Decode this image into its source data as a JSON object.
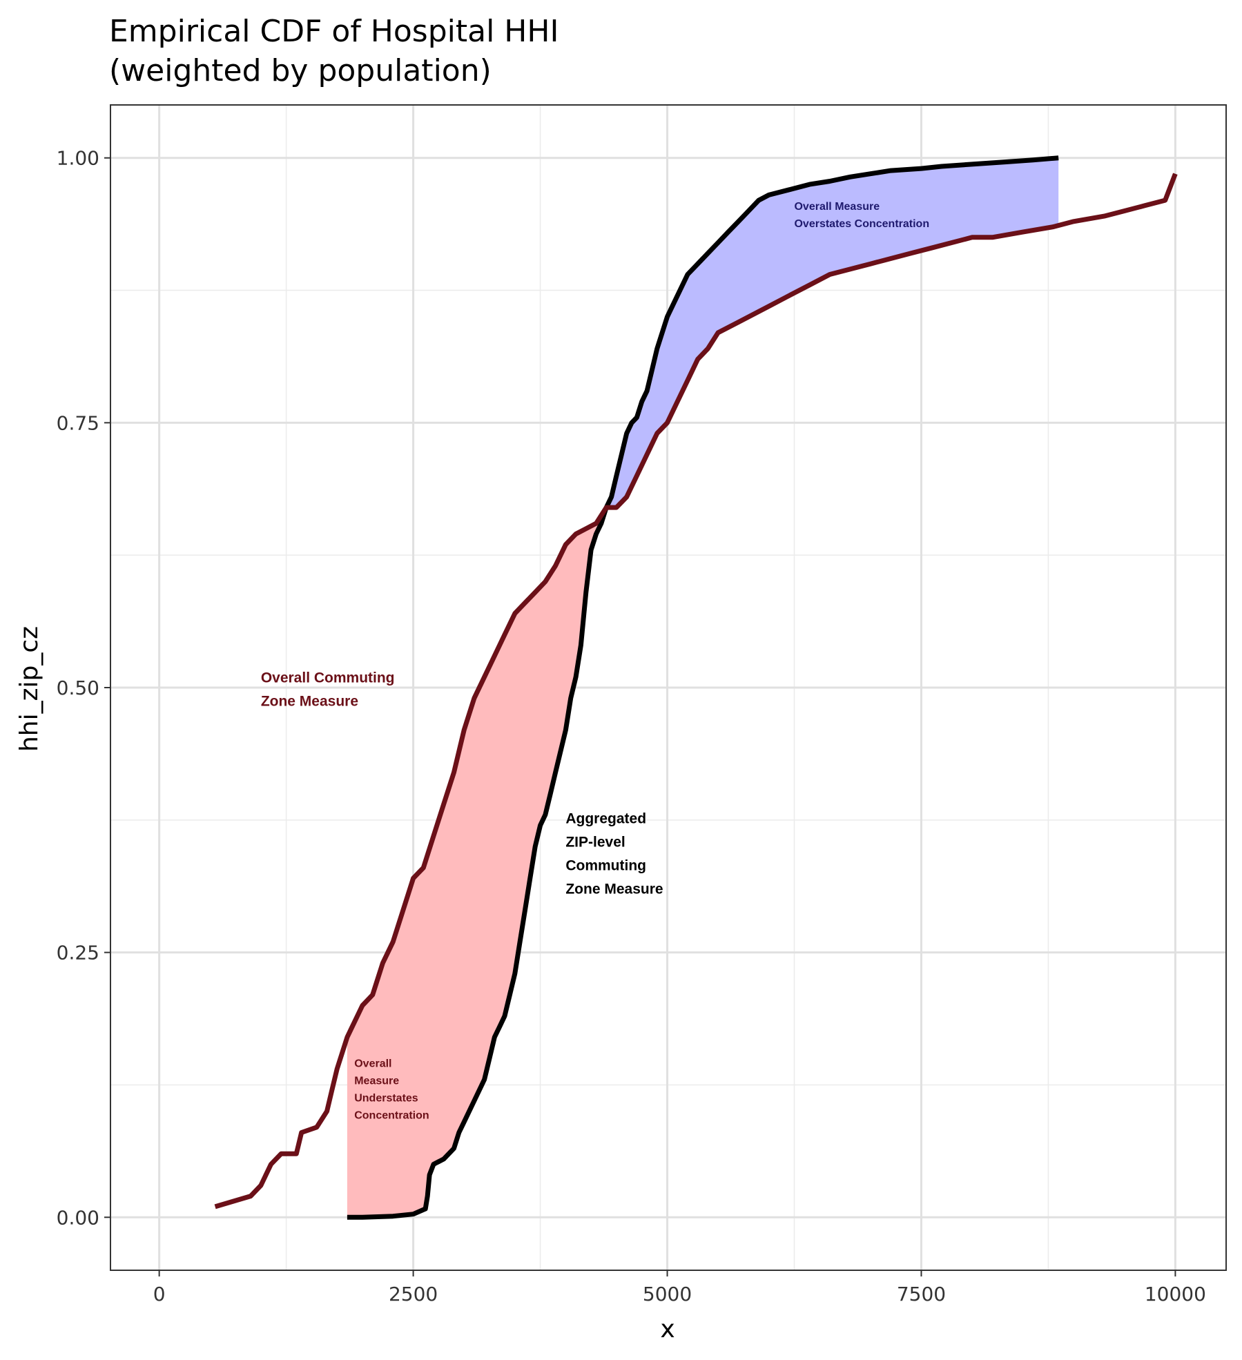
{
  "chart_data": {
    "type": "line",
    "title_line1": "Empirical CDF of Hospital HHI",
    "title_line2": "(weighted by population)",
    "xlabel": "x",
    "ylabel": "hhi_zip_cz",
    "xlim": [
      -480,
      10500
    ],
    "ylim": [
      -0.05,
      1.05
    ],
    "x_ticks": [
      0,
      2500,
      5000,
      7500,
      10000
    ],
    "x_tick_labels": [
      "0",
      "2500",
      "5000",
      "7500",
      "10000"
    ],
    "y_ticks": [
      0,
      0.25,
      0.5,
      0.75,
      1
    ],
    "y_tick_labels": [
      "0.00",
      "0.25",
      "0.50",
      "0.75",
      "1.00"
    ],
    "grid": true,
    "colors": {
      "overall": "#6b1018",
      "aggregated": "#000000",
      "understates_fill": "#ffbbbd",
      "overstates_fill": "#bbbbff",
      "annotation_blue": "#1f1a6e"
    },
    "series": [
      {
        "key": "overall",
        "x": [
          550,
          900,
          1000,
          1100,
          1200,
          1350,
          1400,
          1550,
          1650,
          1700,
          1750,
          1850,
          1950,
          2000,
          2100,
          2200,
          2300,
          2400,
          2500,
          2600,
          2700,
          2800,
          2900,
          3000,
          3100,
          3200,
          3300,
          3400,
          3500,
          3600,
          3700,
          3800,
          3900,
          4000,
          4100,
          4200,
          4300,
          4400,
          4500,
          4600,
          4700,
          4800,
          4900,
          5000,
          5100,
          5200,
          5300,
          5400,
          5500,
          5700,
          6000,
          6200,
          6400,
          6600,
          6800,
          7000,
          7200,
          7400,
          7600,
          7800,
          8000,
          8200,
          8500,
          8800,
          9000,
          9300,
          9500,
          9700,
          9900,
          10000
        ],
        "y": [
          0.01,
          0.02,
          0.03,
          0.05,
          0.06,
          0.06,
          0.08,
          0.085,
          0.1,
          0.12,
          0.14,
          0.17,
          0.19,
          0.2,
          0.21,
          0.24,
          0.26,
          0.29,
          0.32,
          0.33,
          0.36,
          0.39,
          0.42,
          0.46,
          0.49,
          0.51,
          0.53,
          0.55,
          0.57,
          0.58,
          0.59,
          0.6,
          0.615,
          0.635,
          0.645,
          0.65,
          0.655,
          0.67,
          0.67,
          0.68,
          0.7,
          0.72,
          0.74,
          0.75,
          0.77,
          0.79,
          0.81,
          0.82,
          0.835,
          0.845,
          0.86,
          0.87,
          0.88,
          0.89,
          0.895,
          0.9,
          0.905,
          0.91,
          0.915,
          0.92,
          0.925,
          0.925,
          0.93,
          0.935,
          0.94,
          0.945,
          0.95,
          0.955,
          0.96,
          0.985
        ]
      },
      {
        "key": "aggregated",
        "x": [
          1850,
          2000,
          2300,
          2500,
          2620,
          2640,
          2660,
          2700,
          2800,
          2900,
          2950,
          3000,
          3100,
          3200,
          3250,
          3300,
          3350,
          3400,
          3450,
          3500,
          3550,
          3600,
          3650,
          3700,
          3750,
          3800,
          3850,
          3900,
          4000,
          4050,
          4100,
          4150,
          4200,
          4250,
          4300,
          4350,
          4400,
          4450,
          4500,
          4550,
          4600,
          4650,
          4700,
          4750,
          4800,
          4850,
          4900,
          5000,
          5100,
          5200,
          5300,
          5400,
          5500,
          5600,
          5700,
          5800,
          5900,
          6000,
          6200,
          6400,
          6600,
          6800,
          7000,
          7200,
          7500,
          7700,
          8000,
          8300,
          8600,
          8850
        ],
        "y": [
          0.0,
          0.0,
          0.001,
          0.003,
          0.008,
          0.02,
          0.04,
          0.05,
          0.055,
          0.065,
          0.08,
          0.09,
          0.11,
          0.13,
          0.15,
          0.17,
          0.18,
          0.19,
          0.21,
          0.23,
          0.26,
          0.29,
          0.32,
          0.35,
          0.37,
          0.38,
          0.4,
          0.42,
          0.46,
          0.49,
          0.51,
          0.54,
          0.59,
          0.63,
          0.645,
          0.655,
          0.67,
          0.68,
          0.7,
          0.72,
          0.74,
          0.75,
          0.755,
          0.77,
          0.78,
          0.8,
          0.82,
          0.85,
          0.87,
          0.89,
          0.9,
          0.91,
          0.92,
          0.93,
          0.94,
          0.95,
          0.96,
          0.965,
          0.97,
          0.975,
          0.978,
          0.982,
          0.985,
          0.988,
          0.99,
          0.992,
          0.994,
          0.996,
          0.998,
          1.0
        ]
      }
    ],
    "annotations": {
      "overall_label": [
        "Overall Commuting",
        "Zone Measure"
      ],
      "aggregated_label": [
        "Aggregated",
        "ZIP-level",
        "Commuting",
        "Zone Measure"
      ],
      "overstates_label": [
        "Overall Measure",
        "Overstates Concentration"
      ],
      "understates_label": [
        "Overall",
        "Measure",
        "Understates",
        "Concentration"
      ]
    }
  }
}
